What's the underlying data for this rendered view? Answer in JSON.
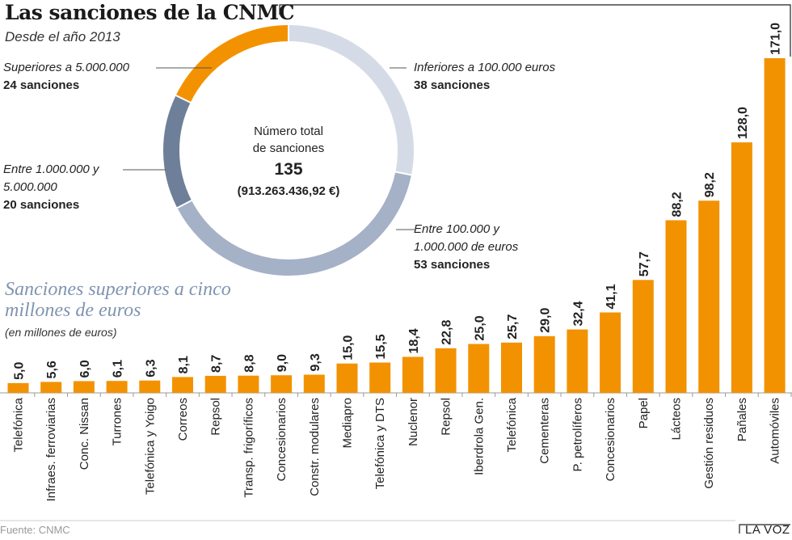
{
  "header": {
    "title": "Las sanciones de la CNMC",
    "subtitle": "Desde el año 2013"
  },
  "donut": {
    "center_line1": "Número total",
    "center_line2": "de sanciones",
    "center_total": "135",
    "center_amount": "(913.263.436,92 €)",
    "segments": [
      {
        "desc": "Inferiores a 100.000 euros",
        "count_label": "38 sanciones",
        "count": 38,
        "color": "#d5dbe6"
      },
      {
        "desc": "Entre 100.000 y 1.000.000 de euros",
        "count_label": "53 sanciones",
        "count": 53,
        "color": "#a4b1c6"
      },
      {
        "desc": "Entre 1.000.000 y 5.000.000",
        "count_label": "20 sanciones",
        "count": 20,
        "color": "#6e8099"
      },
      {
        "desc": "Superiores a 5.000.000",
        "count_label": "24 sanciones",
        "count": 24,
        "color": "#f39200"
      }
    ]
  },
  "chart_data": {
    "type": "bar",
    "title": "Sanciones superiores a cinco millones de euros",
    "subtitle": "(en millones de euros)",
    "ylabel": "millones de euros",
    "ylim": [
      0,
      171
    ],
    "color": "#f39200",
    "categories": [
      "Telefónica",
      "Infraes. ferroviarias",
      "Conc. Nissan",
      "Turrones",
      "Telefónica y Yoigo",
      "Correos",
      "Repsol",
      "Transp. frigoríficos",
      "Concesionarios",
      "Constr. modulares",
      "Mediapro",
      "Telefónica y DTS",
      "Nuclenor",
      "Repsol",
      "Iberdrola Gen.",
      "Telefónica",
      "Cementeras",
      "P. petrolíferos",
      "Concesionarios",
      "Papel",
      "Lácteos",
      "Gestión residuos",
      "Pañales",
      "Automóviles"
    ],
    "values": [
      5.0,
      5.6,
      6.0,
      6.1,
      6.3,
      8.1,
      8.7,
      8.8,
      9.0,
      9.3,
      15.0,
      15.5,
      18.4,
      22.8,
      25.0,
      25.7,
      29.0,
      32.4,
      41.1,
      57.7,
      88.2,
      98.2,
      128.0,
      171.0
    ],
    "value_labels": [
      "5,0",
      "5,6",
      "6,0",
      "6,1",
      "6,3",
      "8,1",
      "8,7",
      "8,8",
      "9,0",
      "9,3",
      "15,0",
      "15,5",
      "18,4",
      "22,8",
      "25,0",
      "25,7",
      "29,0",
      "32,4",
      "41,1",
      "57,7",
      "88,2",
      "98,2",
      "128,0",
      "171,0"
    ]
  },
  "footer": {
    "source": "Fuente: CNMC",
    "brand": "LA VOZ"
  }
}
